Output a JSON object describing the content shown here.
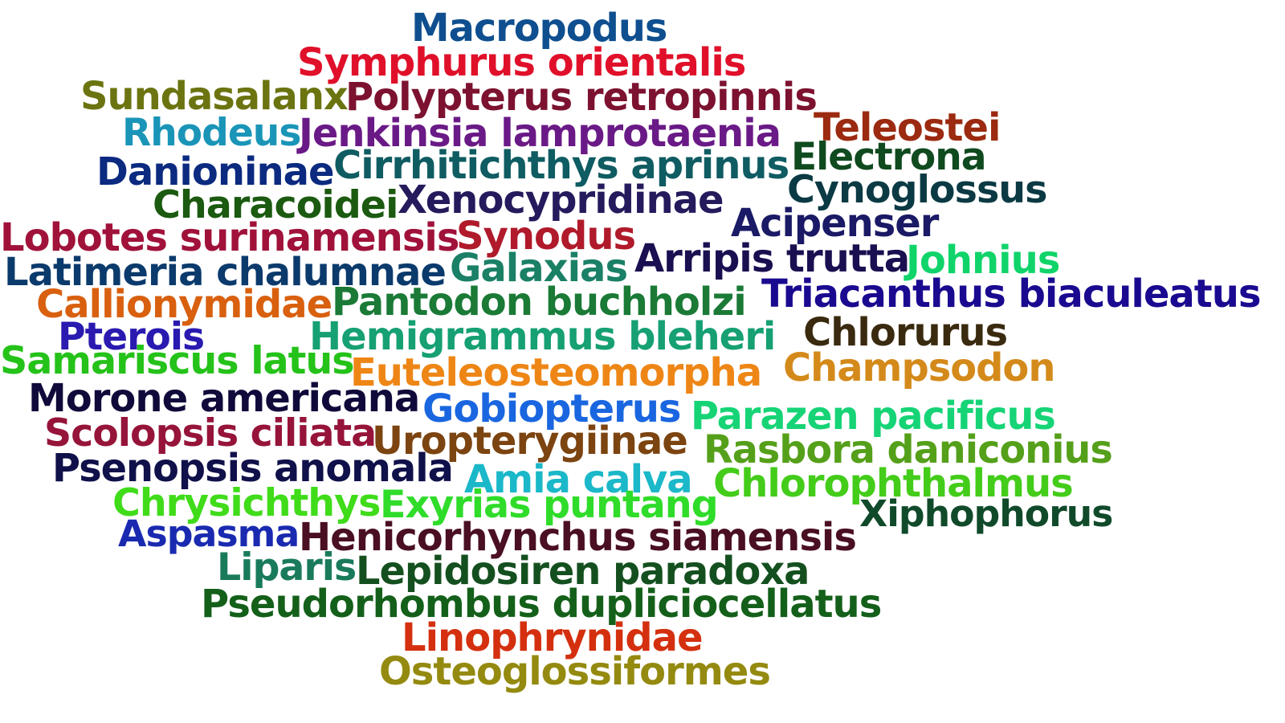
{
  "words": [
    {
      "text": "Macropodus",
      "color": "#0f4f8f"
    },
    {
      "text": "Symphurus orientalis",
      "color": "#e0102a"
    },
    {
      "text": "Sundasalanx",
      "color": "#6b7410"
    },
    {
      "text": "Polypterus retropinnis",
      "color": "#7c1230"
    },
    {
      "text": "Teleostei",
      "color": "#9b2a10"
    },
    {
      "text": "Rhodeus",
      "color": "#1a95b8"
    },
    {
      "text": "Jenkinsia lamprotaenia",
      "color": "#6a1a86"
    },
    {
      "text": "Electrona",
      "color": "#104a1f"
    },
    {
      "text": "Danioninae",
      "color": "#0b2a80"
    },
    {
      "text": "Cirrhitichthys aprinus",
      "color": "#0f5c62"
    },
    {
      "text": "Cynoglossus",
      "color": "#0b3a44"
    },
    {
      "text": "Characoidei",
      "color": "#1b5a10"
    },
    {
      "text": "Xenocypridinae",
      "color": "#241a5c"
    },
    {
      "text": "Acipenser",
      "color": "#1a1a66"
    },
    {
      "text": "Lobotes surinamensis",
      "color": "#a0123a"
    },
    {
      "text": "Synodus",
      "color": "#b01a2a"
    },
    {
      "text": "Latimeria chalumnae",
      "color": "#0b3a6c"
    },
    {
      "text": "Galaxias",
      "color": "#1a8066"
    },
    {
      "text": "Arripis trutta",
      "color": "#1a0f50"
    },
    {
      "text": "Johnius",
      "color": "#10d46a"
    },
    {
      "text": "Callionymidae",
      "color": "#d8600f"
    },
    {
      "text": "Pantodon buchholzi",
      "color": "#1a7a36"
    },
    {
      "text": "Triacanthus biaculeatus",
      "color": "#1a0a90"
    },
    {
      "text": "Pterois",
      "color": "#2a1ab0"
    },
    {
      "text": "Hemigrammus bleheri",
      "color": "#16a073"
    },
    {
      "text": "Chlorurus",
      "color": "#3a2a0f"
    },
    {
      "text": "Samariscus latus",
      "color": "#25c21a"
    },
    {
      "text": "Euteleosteomorpha",
      "color": "#ee8616"
    },
    {
      "text": "Champsodon",
      "color": "#d48a1a"
    },
    {
      "text": "Morone americana",
      "color": "#0f0a3a"
    },
    {
      "text": "Gobiopterus",
      "color": "#1a66e0"
    },
    {
      "text": "Parazen pacificus",
      "color": "#16d476"
    },
    {
      "text": "Scolopsis ciliata",
      "color": "#96143a"
    },
    {
      "text": "Uropterygiinae",
      "color": "#7c4410"
    },
    {
      "text": "Rasbora daniconius",
      "color": "#55a01a"
    },
    {
      "text": "Psenopsis anomala",
      "color": "#10104a"
    },
    {
      "text": "Amia calva",
      "color": "#1ab8c8"
    },
    {
      "text": "Chlorophthalmus",
      "color": "#44cc1a"
    },
    {
      "text": "Chrysichthys",
      "color": "#40dc1a"
    },
    {
      "text": "Exyrias puntang",
      "color": "#30dc2a"
    },
    {
      "text": "Xiphophorus",
      "color": "#104a2a"
    },
    {
      "text": "Aspasma",
      "color": "#1a2ab0"
    },
    {
      "text": "Henicorhynchus siamensis",
      "color": "#4a0f22"
    },
    {
      "text": "Liparis",
      "color": "#1a7a5c"
    },
    {
      "text": "Lepidosiren paradoxa",
      "color": "#14501f"
    },
    {
      "text": "Pseudorhombus dupliciocellatus",
      "color": "#14601a"
    },
    {
      "text": "Linophrynidae",
      "color": "#d4300f"
    },
    {
      "text": "Osteoglossiformes",
      "color": "#948a10"
    }
  ]
}
